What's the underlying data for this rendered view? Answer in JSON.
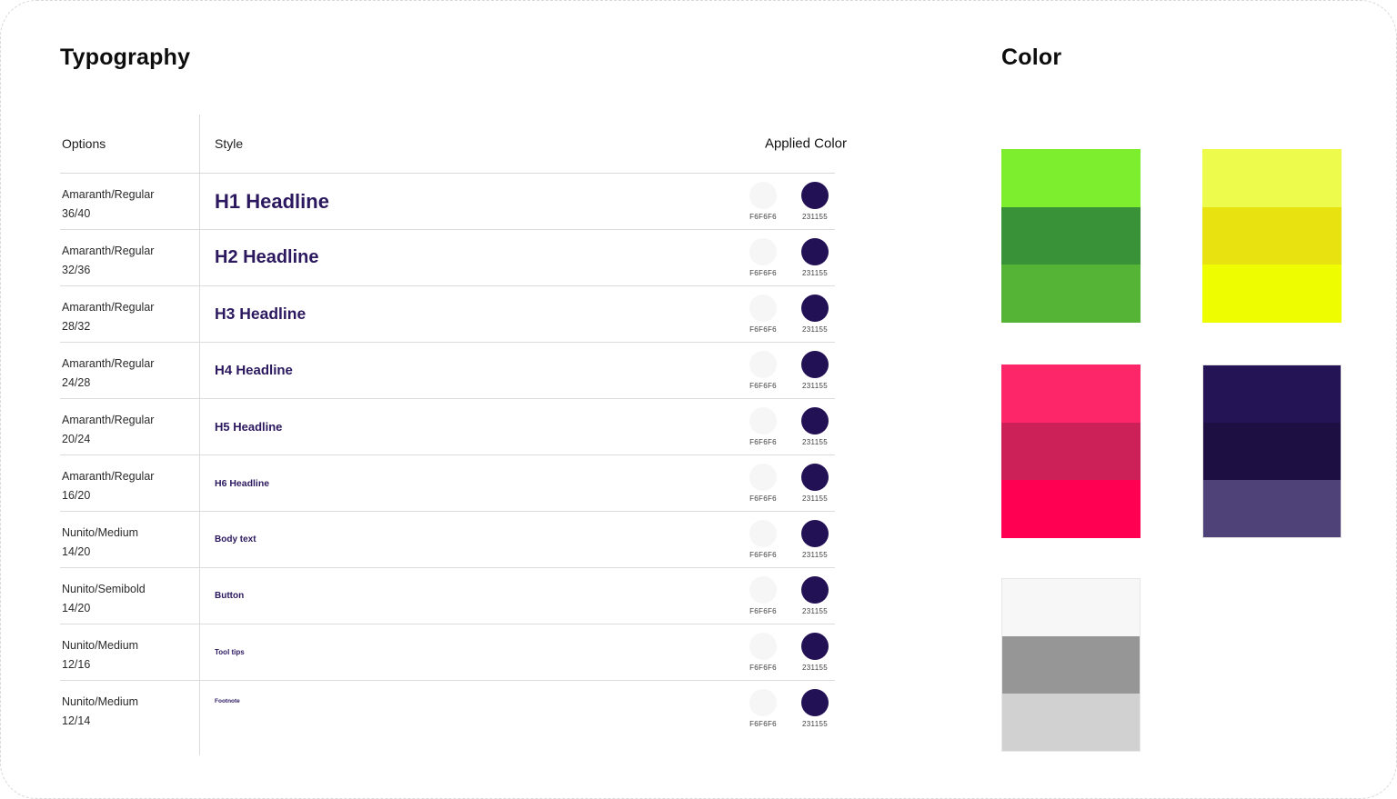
{
  "typography": {
    "title": "Typography",
    "columns": {
      "options": "Options",
      "style": "Style",
      "applied": "Applied Color"
    },
    "applied_color": {
      "light": {
        "hex_label": "F6F6F6",
        "color": "#F6F6F6"
      },
      "dark": {
        "hex_label": "231155",
        "color": "#231155"
      }
    },
    "rows": [
      {
        "option_font": "Amaranth/Regular",
        "option_size": "36/40",
        "label": "H1 Headline"
      },
      {
        "option_font": "Amaranth/Regular",
        "option_size": "32/36",
        "label": "H2 Headline"
      },
      {
        "option_font": "Amaranth/Regular",
        "option_size": "28/32",
        "label": "H3 Headline"
      },
      {
        "option_font": "Amaranth/Regular",
        "option_size": "24/28",
        "label": "H4 Headline"
      },
      {
        "option_font": "Amaranth/Regular",
        "option_size": "20/24",
        "label": "H5 Headline"
      },
      {
        "option_font": "Amaranth/Regular",
        "option_size": "16/20",
        "label": "H6 Headline"
      },
      {
        "option_font": "Nunito/Medium",
        "option_size": "14/20",
        "label": "Body text"
      },
      {
        "option_font": "Nunito/Semibold",
        "option_size": "14/20",
        "label": "Button"
      },
      {
        "option_font": "Nunito/Medium",
        "option_size": "12/16",
        "label": "Tool tips"
      },
      {
        "option_font": "Nunito/Medium",
        "option_size": "12/14",
        "label": "Footnote"
      }
    ],
    "headline_text_color": "#2B185E"
  },
  "color": {
    "title": "Color",
    "palettes": [
      {
        "name": "green",
        "colors": [
          "#7DEE2D",
          "#399237",
          "#55B436"
        ]
      },
      {
        "name": "yellow",
        "colors": [
          "#EDFB4D",
          "#E8E211",
          "#EEFE00"
        ]
      },
      {
        "name": "pink",
        "colors": [
          "#FD2669",
          "#CB2158",
          "#FF0052"
        ]
      },
      {
        "name": "purple",
        "colors": [
          "#241456",
          "#1D0F42",
          "#4E4278"
        ]
      },
      {
        "name": "gray",
        "colors": [
          "#F7F7F7",
          "#969696",
          "#D1D1D1"
        ]
      }
    ]
  }
}
